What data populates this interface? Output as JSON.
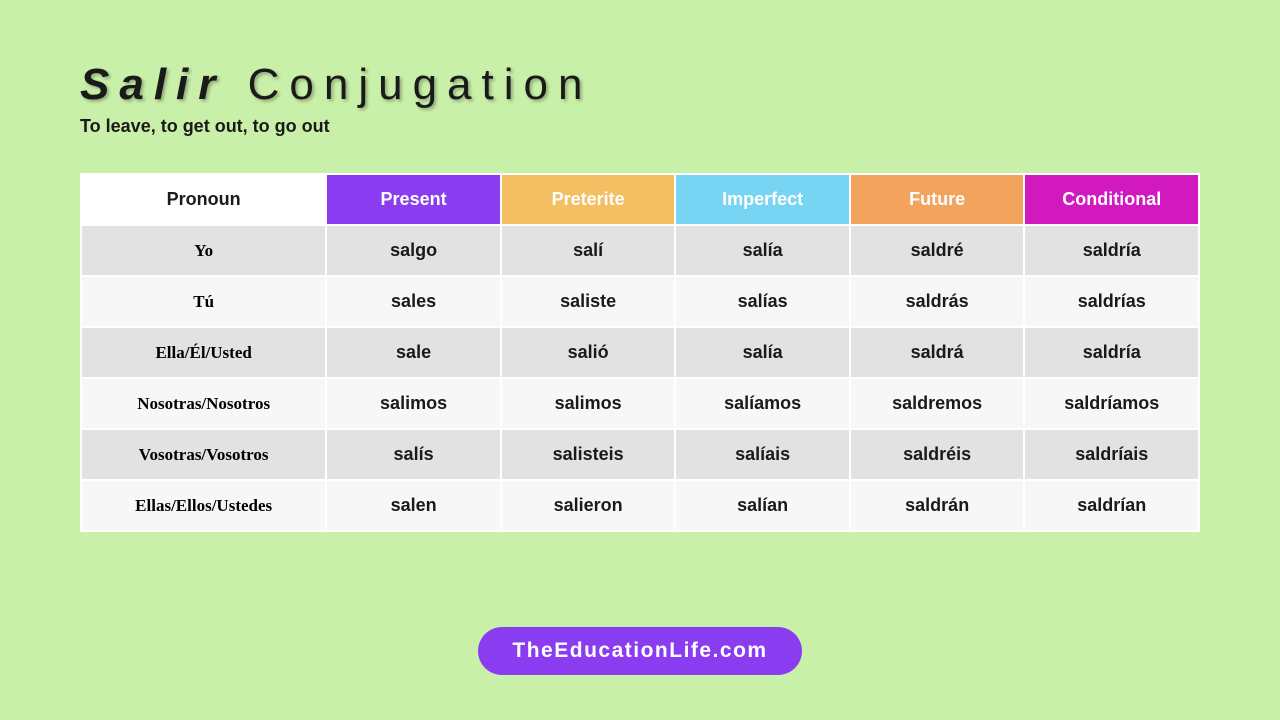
{
  "colors": {
    "background": "#c9f0a8",
    "badge_bg": "#8a3cf0",
    "text_dark": "#1a1a1a",
    "row_odd": "#e2e2e2",
    "row_even": "#f7f7f7"
  },
  "title": {
    "verb": "Salir",
    "rest": " Conjugation"
  },
  "subtitle": "To leave, to get out, to go out",
  "headers": {
    "pronoun": "Pronoun",
    "tenses": [
      {
        "label": "Present",
        "bg": "#8a3cf0"
      },
      {
        "label": "Preterite",
        "bg": "#f4be62"
      },
      {
        "label": "Imperfect",
        "bg": "#77d4f2"
      },
      {
        "label": "Future",
        "bg": "#f2a45e"
      },
      {
        "label": "Conditional",
        "bg": "#d219c0"
      }
    ]
  },
  "rows": [
    {
      "pronoun": "Yo",
      "cells": [
        "salgo",
        "salí",
        "salía",
        "saldré",
        "saldría"
      ]
    },
    {
      "pronoun": "Tú",
      "cells": [
        "sales",
        "saliste",
        "salías",
        "saldrás",
        "saldrías"
      ]
    },
    {
      "pronoun": "Ella/Él/Usted",
      "cells": [
        "sale",
        "salió",
        "salía",
        "saldrá",
        "saldría"
      ]
    },
    {
      "pronoun": "Nosotras/Nosotros",
      "cells": [
        "salimos",
        "salimos",
        "salíamos",
        "saldremos",
        "saldríamos"
      ]
    },
    {
      "pronoun": "Vosotras/Vosotros",
      "cells": [
        "salís",
        "salisteis",
        "salíais",
        "saldréis",
        "saldríais"
      ]
    },
    {
      "pronoun": "Ellas/Ellos/Ustedes",
      "cells": [
        "salen",
        "salieron",
        "salían",
        "saldrán",
        "saldrían"
      ]
    }
  ],
  "badge": "TheEducationLife.com"
}
